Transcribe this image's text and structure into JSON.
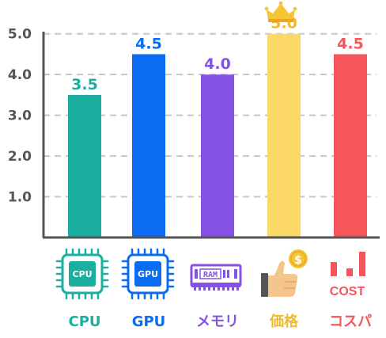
{
  "chart_data": {
    "type": "bar",
    "categories": [
      "CPU",
      "GPU",
      "メモリ",
      "価格",
      "コスパ"
    ],
    "values": [
      3.5,
      4.5,
      4.0,
      5.0,
      4.5
    ],
    "value_labels": [
      "3.5",
      "4.5",
      "4.0",
      "5.0",
      "4.5"
    ],
    "y_ticks": [
      "1.0",
      "2.0",
      "3.0",
      "4.0",
      "5.0"
    ],
    "ylim": [
      0,
      5.5
    ],
    "grid": true,
    "colors": [
      "#1aaf9f",
      "#0a6cf0",
      "#8552e6",
      "#fcd869",
      "#f7555a"
    ],
    "label_colors": [
      "#1aaf9f",
      "#0a6cf0",
      "#8552e6",
      "#f0b92e",
      "#f7555a"
    ],
    "icons": [
      "cpu-chip-icon",
      "gpu-chip-icon",
      "ram-module-icon",
      "thumbs-up-coin-icon",
      "cost-chart-icon"
    ],
    "icon_texts": [
      "CPU",
      "GPU",
      "RAM",
      "$",
      "COST"
    ],
    "highlight": {
      "category": "価格",
      "icon": "crown-icon"
    }
  }
}
